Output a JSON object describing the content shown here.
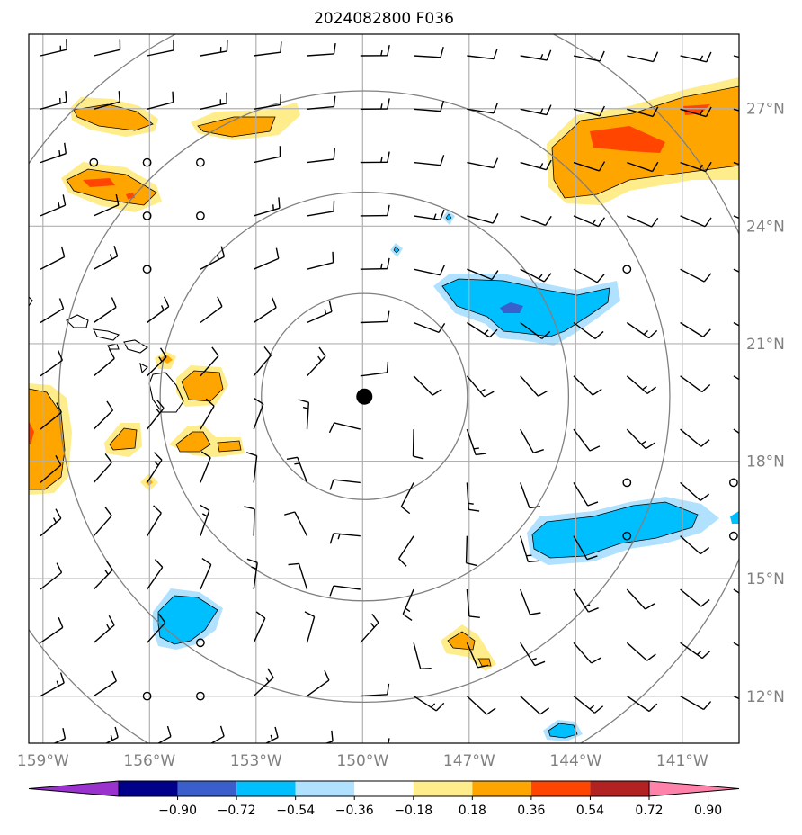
{
  "title": "2024082800 F036",
  "map": {
    "lon_ticks": [
      {
        "lon": -159,
        "label": "159°W"
      },
      {
        "lon": -156,
        "label": "156°W"
      },
      {
        "lon": -153,
        "label": "153°W"
      },
      {
        "lon": -150,
        "label": "150°W"
      },
      {
        "lon": -147,
        "label": "147°W"
      },
      {
        "lon": -144,
        "label": "144°W"
      },
      {
        "lon": -141,
        "label": "141°W"
      }
    ],
    "lat_ticks": [
      {
        "lat": 27,
        "label": "27°N"
      },
      {
        "lat": 24,
        "label": "24°N"
      },
      {
        "lat": 21,
        "label": "21°N"
      },
      {
        "lat": 18,
        "label": "18°N"
      },
      {
        "lat": 15,
        "label": "15°N"
      },
      {
        "lat": 12,
        "label": "12°N"
      }
    ],
    "extent": {
      "lon_min": -159.4,
      "lon_max": -139.4,
      "lat_min": 10.8,
      "lat_max": 28.9
    },
    "storm_center": {
      "lon": -149.95,
      "lat": 19.65
    },
    "range_rings_deg": [
      2.9,
      5.75,
      8.6,
      11.5
    ],
    "grid_color": "#b0b0b0",
    "ring_color": "#808080"
  },
  "colorbar": {
    "colors": [
      "#9a32cd",
      "#00008b",
      "#3a5fcd",
      "#00bfff",
      "#b0e2ff",
      "#ffffff",
      "#ffec8b",
      "#ffa500",
      "#ff4500",
      "#b22222",
      "#ff82ab"
    ],
    "labels": [
      "−0.90",
      "−0.72",
      "−0.54",
      "−0.36",
      "−0.18",
      "0.18",
      "0.36",
      "0.54",
      "0.72",
      "0.90"
    ]
  }
}
